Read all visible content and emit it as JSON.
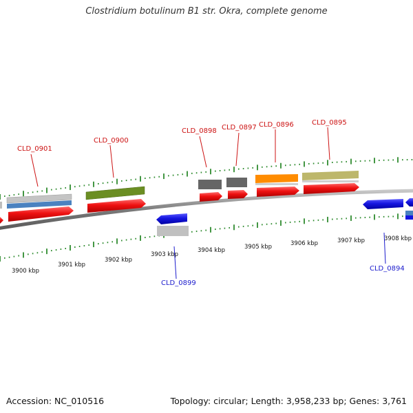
{
  "title": "Clostridium botulinum B1 str. Okra, complete genome",
  "footer": {
    "accession": "Accession: NC_010516",
    "summary": "Topology: circular; Length: 3,958,233 bp; Genes: 3,761"
  },
  "colors": {
    "backbone": "#8a8a8a",
    "tick": "#2e8b2e",
    "forward_label": "#cc1111",
    "reverse_label": "#1a1acc",
    "cds_red": "#ee1111",
    "gene_blue": "#1515e0"
  },
  "scale_labels": [
    {
      "kbp": 3900,
      "text": "3900 kbp"
    },
    {
      "kbp": 3901,
      "text": "3901 kbp"
    },
    {
      "kbp": 3902,
      "text": "3902 kbp"
    },
    {
      "kbp": 3903,
      "text": "3903 kbp"
    },
    {
      "kbp": 3904,
      "text": "3904 kbp"
    },
    {
      "kbp": 3905,
      "text": "3905 kbp"
    },
    {
      "kbp": 3906,
      "text": "3906 kbp"
    },
    {
      "kbp": 3907,
      "text": "3907 kbp"
    },
    {
      "kbp": 3908,
      "text": "3908 kbp"
    }
  ],
  "genes": [
    {
      "id": "CLD_0901",
      "strand": "+"
    },
    {
      "id": "CLD_0900",
      "strand": "+"
    },
    {
      "id": "CLD_0899",
      "strand": "-"
    },
    {
      "id": "CLD_0898",
      "strand": "+"
    },
    {
      "id": "CLD_0897",
      "strand": "+"
    },
    {
      "id": "CLD_0896",
      "strand": "+"
    },
    {
      "id": "CLD_0895",
      "strand": "+"
    },
    {
      "id": "CLD_0894",
      "strand": "-"
    }
  ]
}
